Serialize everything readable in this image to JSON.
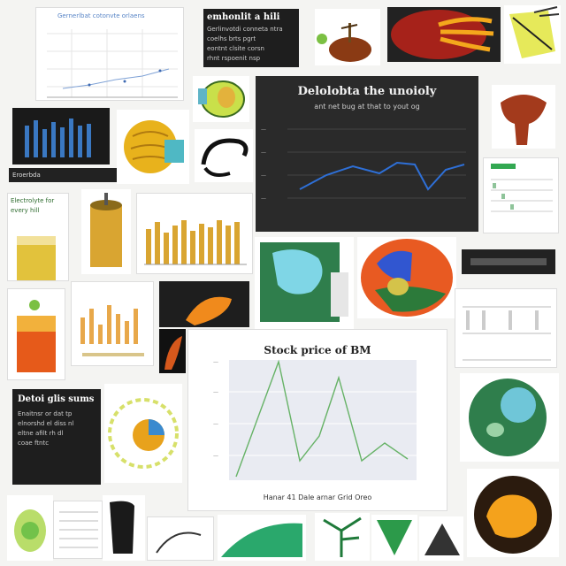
{
  "tiles": {
    "t1_title": "Electrolyte for every hill",
    "t2_title": "emhonlit a hili",
    "t2_lines": [
      "Gerlinvotdi conneta ntra",
      "coelhs brts pgrt",
      "eontnt clsite corsn",
      "rhnt rspoenit nsp"
    ],
    "dark_chart": {
      "title": "Delolobta the unoioly",
      "subtitle": "ant net bug at that to yout og"
    },
    "mid_chart": {
      "title": "Stock price of BM",
      "xlabel": "Hanar 41 Dale arnar Grid Oreo"
    },
    "left_text_title": "Detoi glis sums",
    "left_text_lines": [
      "Enaitnsr or dat tp",
      "elnorshd el diss nl",
      "eltne afilt rh dl",
      "coae ftntc"
    ],
    "small_caption_1": "Gernerlbat cotonvte orlaens",
    "small_caption_2": "Eroerbda"
  },
  "colors": {
    "dark": "#1e1e1e",
    "accent_blue": "#2e6fd6",
    "accent_green": "#66b266",
    "gold": "#d9a531",
    "orange": "#f08a1c"
  }
}
